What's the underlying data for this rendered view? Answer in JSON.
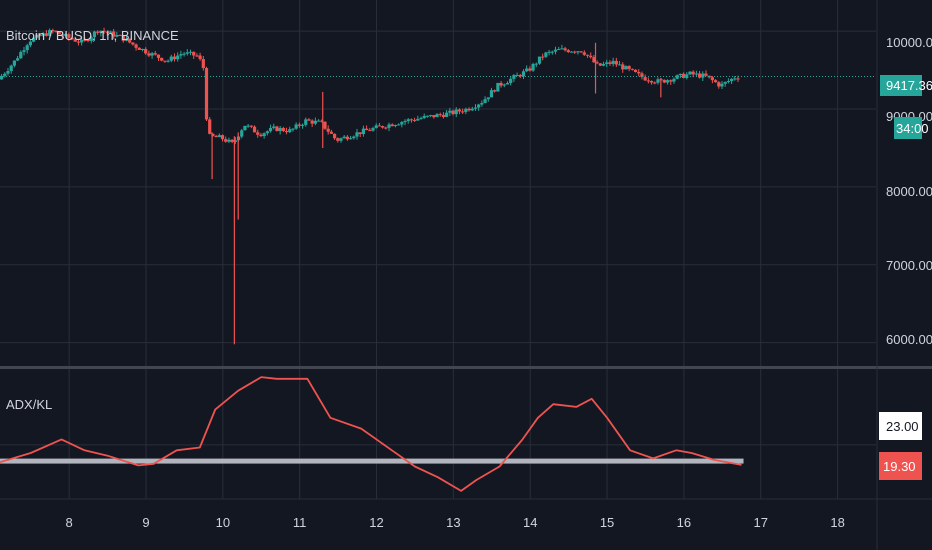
{
  "symbol_title": "Bitcoin / BUSD, 1h, BINANCE",
  "indicator_title": "ADX/KL",
  "price_axis": {
    "ticks": [
      "10000.00",
      "9000.00",
      "8000.00",
      "7000.00",
      "6000.00"
    ],
    "last_price_label": "9417.36",
    "countdown_label": "34:00",
    "last_price": 9417.36
  },
  "indicator_axis": {
    "ticks": [
      "23.00"
    ],
    "current_value_label": "19.30",
    "current_value": 19.3
  },
  "time_axis": {
    "ticks": [
      "8",
      "9",
      "10",
      "11",
      "12",
      "13",
      "14",
      "15",
      "16",
      "17",
      "18"
    ]
  },
  "colors": {
    "background": "#131722",
    "grid": "#2a2e39",
    "up": "#26a69a",
    "down": "#ef5350",
    "last_price_line": "#26a69a",
    "adx_line": "#ef5350",
    "key_level": "#b2b5be",
    "text": "#d1d4dc"
  },
  "chart_data": [
    {
      "type": "candlestick",
      "title": "Bitcoin / BUSD, 1h, BINANCE",
      "ylim": [
        5700,
        10400
      ],
      "x_range_days": [
        7.1,
        18.5
      ],
      "last_price": 9417.36,
      "series_path": [
        [
          7.1,
          9380
        ],
        [
          7.3,
          9600
        ],
        [
          7.5,
          9880
        ],
        [
          7.8,
          10000
        ],
        [
          8.0,
          9920
        ],
        [
          8.2,
          9850
        ],
        [
          8.4,
          10020
        ],
        [
          8.7,
          9920
        ],
        [
          8.9,
          9800
        ],
        [
          9.1,
          9700
        ],
        [
          9.3,
          9620
        ],
        [
          9.5,
          9720
        ],
        [
          9.7,
          9680
        ],
        [
          9.78,
          9500
        ],
        [
          9.82,
          8650
        ],
        [
          10.0,
          8630
        ],
        [
          10.15,
          8550
        ],
        [
          10.3,
          8800
        ],
        [
          10.5,
          8680
        ],
        [
          10.7,
          8750
        ],
        [
          10.9,
          8720
        ],
        [
          11.1,
          8850
        ],
        [
          11.3,
          8820
        ],
        [
          11.5,
          8600
        ],
        [
          11.8,
          8700
        ],
        [
          12.1,
          8780
        ],
        [
          12.4,
          8850
        ],
        [
          12.7,
          8900
        ],
        [
          13.0,
          8950
        ],
        [
          13.2,
          9000
        ],
        [
          13.4,
          9100
        ],
        [
          13.6,
          9300
        ],
        [
          13.8,
          9400
        ],
        [
          14.0,
          9500
        ],
        [
          14.2,
          9700
        ],
        [
          14.4,
          9760
        ],
        [
          14.7,
          9750
        ],
        [
          14.9,
          9550
        ],
        [
          15.1,
          9600
        ],
        [
          15.3,
          9500
        ],
        [
          15.5,
          9400
        ],
        [
          15.7,
          9350
        ],
        [
          15.9,
          9400
        ],
        [
          16.1,
          9450
        ],
        [
          16.3,
          9420
        ],
        [
          16.5,
          9300
        ],
        [
          16.7,
          9417
        ]
      ],
      "spikes": [
        {
          "x": 9.86,
          "low": 8100,
          "high": 8700
        },
        {
          "x": 10.15,
          "low": 5980,
          "high": 8650
        },
        {
          "x": 10.2,
          "low": 7580,
          "high": 8700
        },
        {
          "x": 11.3,
          "low": 8500,
          "high": 9220
        },
        {
          "x": 14.85,
          "low": 9200,
          "high": 9850
        },
        {
          "x": 15.7,
          "low": 9150,
          "high": 9400
        }
      ]
    },
    {
      "type": "line",
      "title": "ADX/KL",
      "ylim": [
        13,
        37
      ],
      "key_level": 20,
      "x": [
        7.1,
        7.5,
        7.9,
        8.2,
        8.5,
        8.9,
        9.1,
        9.4,
        9.7,
        9.9,
        10.2,
        10.5,
        10.7,
        11.1,
        11.4,
        11.8,
        12.2,
        12.5,
        12.8,
        13.1,
        13.3,
        13.6,
        13.9,
        14.1,
        14.3,
        14.6,
        14.8,
        15.0,
        15.3,
        15.6,
        15.9,
        16.1,
        16.4,
        16.75
      ],
      "values": [
        19.8,
        21.5,
        24,
        22,
        21,
        19.2,
        19.5,
        22,
        22.5,
        29.5,
        33,
        35.5,
        35.2,
        35.2,
        28,
        26,
        22,
        19,
        17,
        14.5,
        16.5,
        19,
        24,
        28,
        30.5,
        30,
        31.5,
        28,
        22,
        20.5,
        22,
        21.5,
        20.2,
        19.3
      ]
    }
  ]
}
